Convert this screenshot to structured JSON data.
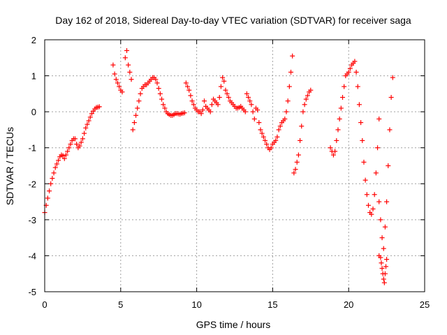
{
  "chart_data": {
    "type": "scatter",
    "title": "Day 162 of 2018, Sidereal Day-to-day VTEC variation (SDTVAR) for receiver saga",
    "xlabel": "GPS time / hours",
    "ylabel": "SDTVAR / TECUs",
    "xlim": [
      0,
      25
    ],
    "ylim": [
      -5,
      2
    ],
    "xticks": [
      "0",
      "5",
      "10",
      "15",
      "20",
      "25"
    ],
    "yticks": [
      "2",
      "1",
      "0",
      "-1",
      "-2",
      "-3",
      "-4",
      "-5"
    ],
    "grid": true,
    "marker": "plus",
    "color": "#ff0000",
    "series": [
      {
        "name": "SDTVAR",
        "x": [
          0.0,
          0.1,
          0.2,
          0.3,
          0.4,
          0.5,
          0.6,
          0.7,
          0.8,
          0.9,
          1.0,
          1.1,
          1.2,
          1.3,
          1.4,
          1.5,
          1.6,
          1.7,
          1.8,
          1.9,
          2.0,
          2.1,
          2.2,
          2.3,
          2.4,
          2.5,
          2.6,
          2.7,
          2.8,
          2.9,
          3.0,
          3.1,
          3.2,
          3.3,
          3.4,
          3.5,
          3.6,
          4.5,
          4.6,
          4.7,
          4.8,
          4.9,
          5.0,
          5.1,
          5.3,
          5.4,
          5.5,
          5.6,
          5.7,
          5.8,
          5.9,
          6.0,
          6.1,
          6.2,
          6.3,
          6.4,
          6.5,
          6.6,
          6.7,
          6.8,
          6.9,
          7.0,
          7.1,
          7.2,
          7.3,
          7.4,
          7.5,
          7.6,
          7.7,
          7.8,
          7.9,
          8.0,
          8.1,
          8.2,
          8.3,
          8.4,
          8.5,
          8.6,
          8.7,
          8.8,
          8.9,
          9.0,
          9.1,
          9.2,
          9.3,
          9.4,
          9.5,
          9.6,
          9.7,
          9.8,
          9.9,
          10.0,
          10.1,
          10.2,
          10.3,
          10.4,
          10.5,
          10.6,
          10.7,
          10.8,
          10.9,
          11.0,
          11.1,
          11.2,
          11.3,
          11.4,
          11.5,
          11.6,
          11.7,
          11.8,
          11.9,
          12.0,
          12.1,
          12.2,
          12.3,
          12.4,
          12.5,
          12.6,
          12.7,
          12.8,
          12.9,
          13.0,
          13.1,
          13.2,
          13.3,
          13.4,
          13.5,
          13.6,
          13.7,
          13.8,
          13.9,
          14.0,
          14.1,
          14.2,
          14.3,
          14.4,
          14.5,
          14.6,
          14.7,
          14.8,
          14.9,
          15.0,
          15.1,
          15.2,
          15.3,
          15.4,
          15.5,
          15.6,
          15.7,
          15.8,
          15.9,
          16.0,
          16.1,
          16.2,
          16.3,
          16.4,
          16.5,
          16.6,
          16.7,
          16.8,
          16.9,
          17.0,
          17.1,
          17.2,
          17.3,
          17.4,
          17.5,
          18.8,
          18.9,
          19.0,
          19.1,
          19.2,
          19.3,
          19.4,
          19.5,
          19.6,
          19.7,
          19.8,
          19.9,
          20.0,
          20.1,
          20.2,
          20.3,
          20.4,
          20.5,
          20.6,
          20.7,
          20.8,
          20.9,
          21.0,
          21.1,
          21.2,
          21.3,
          21.4,
          21.5,
          21.6,
          21.7,
          21.8,
          21.9,
          22.0,
          22.0,
          22.1,
          22.15,
          22.2,
          22.25,
          22.3,
          22.35,
          22.4,
          22.45,
          22.5,
          22.0,
          22.1,
          22.2,
          22.3,
          22.4,
          22.5,
          22.6,
          22.7,
          22.8,
          22.9
        ],
        "y": [
          -2.8,
          -2.6,
          -2.4,
          -2.2,
          -2.0,
          -1.85,
          -1.7,
          -1.55,
          -1.45,
          -1.35,
          -1.25,
          -1.2,
          -1.22,
          -1.3,
          -1.2,
          -1.1,
          -1.0,
          -0.9,
          -0.8,
          -0.75,
          -0.75,
          -0.9,
          -1.0,
          -0.95,
          -0.85,
          -0.75,
          -0.6,
          -0.45,
          -0.35,
          -0.25,
          -0.15,
          -0.05,
          0.02,
          0.08,
          0.12,
          0.13,
          0.14,
          1.3,
          1.05,
          0.9,
          0.8,
          0.7,
          0.6,
          0.55,
          1.5,
          1.7,
          1.3,
          1.1,
          0.9,
          -0.5,
          -0.3,
          -0.1,
          0.1,
          0.3,
          0.5,
          0.65,
          0.7,
          0.75,
          0.75,
          0.8,
          0.85,
          0.9,
          0.95,
          0.95,
          0.9,
          0.8,
          0.65,
          0.5,
          0.35,
          0.2,
          0.1,
          0.0,
          -0.05,
          -0.08,
          -0.1,
          -0.1,
          -0.08,
          -0.05,
          -0.05,
          -0.06,
          -0.07,
          -0.05,
          -0.04,
          -0.03,
          0.8,
          0.7,
          0.6,
          0.45,
          0.3,
          0.2,
          0.1,
          0.05,
          0.0,
          0.0,
          -0.05,
          0.05,
          0.3,
          0.15,
          0.1,
          0.05,
          0.0,
          0.2,
          0.35,
          0.3,
          0.25,
          0.2,
          0.4,
          0.7,
          0.95,
          0.85,
          0.6,
          0.5,
          0.4,
          0.3,
          0.25,
          0.2,
          0.15,
          0.1,
          0.1,
          0.12,
          0.15,
          0.1,
          0.05,
          0.0,
          0.5,
          0.4,
          0.3,
          0.2,
          0.0,
          -0.2,
          0.1,
          0.05,
          -0.3,
          -0.5,
          -0.6,
          -0.7,
          -0.8,
          -0.9,
          -1.0,
          -1.05,
          -1.0,
          -0.9,
          -0.85,
          -0.8,
          -0.7,
          -0.5,
          -0.4,
          -0.3,
          -0.25,
          -0.2,
          0.0,
          0.3,
          0.7,
          1.1,
          1.55,
          -1.7,
          -1.6,
          -1.4,
          -1.2,
          -0.8,
          -0.4,
          0.0,
          0.2,
          0.35,
          0.45,
          0.55,
          0.6,
          -1.0,
          -1.1,
          -1.2,
          -1.1,
          -0.8,
          -0.5,
          -0.2,
          0.1,
          0.4,
          0.7,
          1.0,
          1.05,
          1.1,
          1.2,
          1.3,
          1.35,
          1.4,
          1.1,
          0.7,
          0.2,
          -0.3,
          -0.8,
          -1.4,
          -1.9,
          -2.3,
          -2.6,
          -2.8,
          -2.85,
          -2.7,
          -2.3,
          -1.7,
          -1.0,
          -0.2,
          -4.0,
          -4.05,
          -4.2,
          -4.35,
          -4.5,
          -4.65,
          -4.75,
          -4.5,
          -4.3,
          -4.1,
          -2.5,
          -3.0,
          -3.5,
          -3.8,
          -3.2,
          -2.5,
          -1.5,
          -0.5,
          0.4,
          0.95
        ]
      }
    ]
  }
}
